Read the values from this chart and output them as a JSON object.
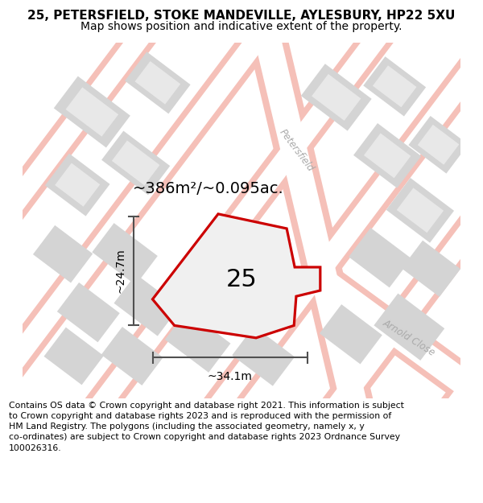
{
  "title_line1": "25, PETERSFIELD, STOKE MANDEVILLE, AYLESBURY, HP22 5XU",
  "title_line2": "Map shows position and indicative extent of the property.",
  "footer": "Contains OS data © Crown copyright and database right 2021. This information is subject\nto Crown copyright and database rights 2023 and is reproduced with the permission of\nHM Land Registry. The polygons (including the associated geometry, namely x, y\nco-ordinates) are subject to Crown copyright and database rights 2023 Ordnance Survey\n100026316.",
  "area_text": "~386m²/~0.095ac.",
  "width_text": "~34.1m",
  "height_text": "~24.7m",
  "number_text": "25",
  "road_pink": "#f5c0b8",
  "road_white": "#ffffff",
  "block_gray": "#d4d4d4",
  "plot_fill": "#f0f0f0",
  "plot_edge": "#cc0000",
  "street_color": "#aaaaaa",
  "dim_color": "#505050",
  "title_fontsize": 11,
  "subtitle_fontsize": 10,
  "footer_fontsize": 7.8,
  "area_fontsize": 14,
  "number_fontsize": 22,
  "dim_fontsize": 10,
  "street_fontsize": 8.5
}
